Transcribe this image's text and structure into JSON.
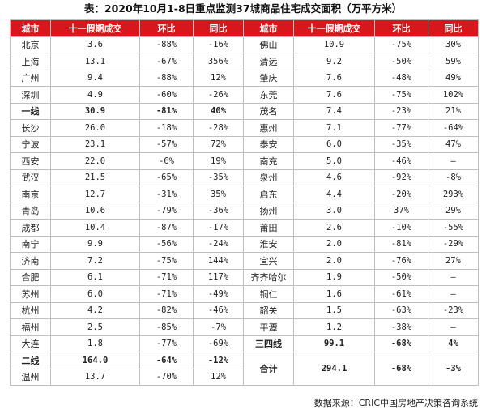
{
  "title": "表：2020年10月1-8日重点监测37城商品住宅成交面积（万平方米）",
  "headers": [
    "城市",
    "十一假期成交",
    "环比",
    "同比",
    "城市",
    "十一假期成交",
    "环比",
    "同比"
  ],
  "left_rows": [
    {
      "city": "北京",
      "val": "3.6",
      "mom": "-88%",
      "yoy": "-16%"
    },
    {
      "city": "上海",
      "val": "13.1",
      "mom": "-67%",
      "yoy": "356%"
    },
    {
      "city": "广州",
      "val": "9.4",
      "mom": "-88%",
      "yoy": "12%"
    },
    {
      "city": "深圳",
      "val": "4.9",
      "mom": "-60%",
      "yoy": "-26%"
    },
    {
      "city": "一线",
      "val": "30.9",
      "mom": "-81%",
      "yoy": "40%"
    },
    {
      "city": "长沙",
      "val": "26.0",
      "mom": "-18%",
      "yoy": "-28%"
    },
    {
      "city": "宁波",
      "val": "23.1",
      "mom": "-57%",
      "yoy": "72%"
    },
    {
      "city": "西安",
      "val": "22.0",
      "mom": "-6%",
      "yoy": "19%"
    },
    {
      "city": "武汉",
      "val": "21.5",
      "mom": "-65%",
      "yoy": "-35%"
    },
    {
      "city": "南京",
      "val": "12.7",
      "mom": "-31%",
      "yoy": "35%"
    },
    {
      "city": "青岛",
      "val": "10.6",
      "mom": "-79%",
      "yoy": "-36%"
    },
    {
      "city": "成都",
      "val": "10.4",
      "mom": "-87%",
      "yoy": "-17%"
    },
    {
      "city": "南宁",
      "val": "9.9",
      "mom": "-56%",
      "yoy": "-24%"
    },
    {
      "city": "济南",
      "val": "7.2",
      "mom": "-75%",
      "yoy": "144%"
    },
    {
      "city": "合肥",
      "val": "6.1",
      "mom": "-71%",
      "yoy": "117%"
    },
    {
      "city": "苏州",
      "val": "6.0",
      "mom": "-71%",
      "yoy": "-49%"
    },
    {
      "city": "杭州",
      "val": "4.2",
      "mom": "-82%",
      "yoy": "-46%"
    },
    {
      "city": "福州",
      "val": "2.5",
      "mom": "-85%",
      "yoy": "-7%"
    },
    {
      "city": "大连",
      "val": "1.8",
      "mom": "-77%",
      "yoy": "-69%"
    },
    {
      "city": "二线",
      "val": "164.0",
      "mom": "-64%",
      "yoy": "-12%"
    },
    {
      "city": "温州",
      "val": "13.7",
      "mom": "-70%",
      "yoy": "12%"
    }
  ],
  "right_rows": [
    {
      "city": "佛山",
      "val": "10.9",
      "mom": "-75%",
      "yoy": "30%"
    },
    {
      "city": "清远",
      "val": "9.2",
      "mom": "-50%",
      "yoy": "59%"
    },
    {
      "city": "肇庆",
      "val": "7.6",
      "mom": "-48%",
      "yoy": "49%"
    },
    {
      "city": "东莞",
      "val": "7.6",
      "mom": "-75%",
      "yoy": "102%"
    },
    {
      "city": "茂名",
      "val": "7.4",
      "mom": "-23%",
      "yoy": "21%"
    },
    {
      "city": "惠州",
      "val": "7.1",
      "mom": "-77%",
      "yoy": "-64%"
    },
    {
      "city": "泰安",
      "val": "6.0",
      "mom": "-35%",
      "yoy": "47%"
    },
    {
      "city": "南充",
      "val": "5.0",
      "mom": "-46%",
      "yoy": "—"
    },
    {
      "city": "泉州",
      "val": "4.6",
      "mom": "-92%",
      "yoy": "-8%"
    },
    {
      "city": "启东",
      "val": "4.4",
      "mom": "-20%",
      "yoy": "293%"
    },
    {
      "city": "扬州",
      "val": "3.0",
      "mom": "37%",
      "yoy": "29%"
    },
    {
      "city": "莆田",
      "val": "2.6",
      "mom": "-10%",
      "yoy": "-55%"
    },
    {
      "city": "淮安",
      "val": "2.0",
      "mom": "-81%",
      "yoy": "-29%"
    },
    {
      "city": "宜兴",
      "val": "2.0",
      "mom": "-76%",
      "yoy": "27%"
    },
    {
      "city": "齐齐哈尔",
      "val": "1.9",
      "mom": "-50%",
      "yoy": "—"
    },
    {
      "city": "铜仁",
      "val": "1.6",
      "mom": "-61%",
      "yoy": "—"
    },
    {
      "city": "韶关",
      "val": "1.5",
      "mom": "-63%",
      "yoy": "-23%"
    },
    {
      "city": "平潭",
      "val": "1.2",
      "mom": "-38%",
      "yoy": "—"
    },
    {
      "city": "三四线",
      "val": "99.1",
      "mom": "-68%",
      "yoy": "4%"
    }
  ],
  "total": {
    "city": "合计",
    "val": "294.1",
    "mom": "-68%",
    "yoy": "-3%"
  },
  "source": "数据来源：CRIC中国房地产决策咨询系统",
  "colors": {
    "header_bg": "#d9161c",
    "header_text": "#ffffff",
    "border": "#bfbfbf"
  }
}
